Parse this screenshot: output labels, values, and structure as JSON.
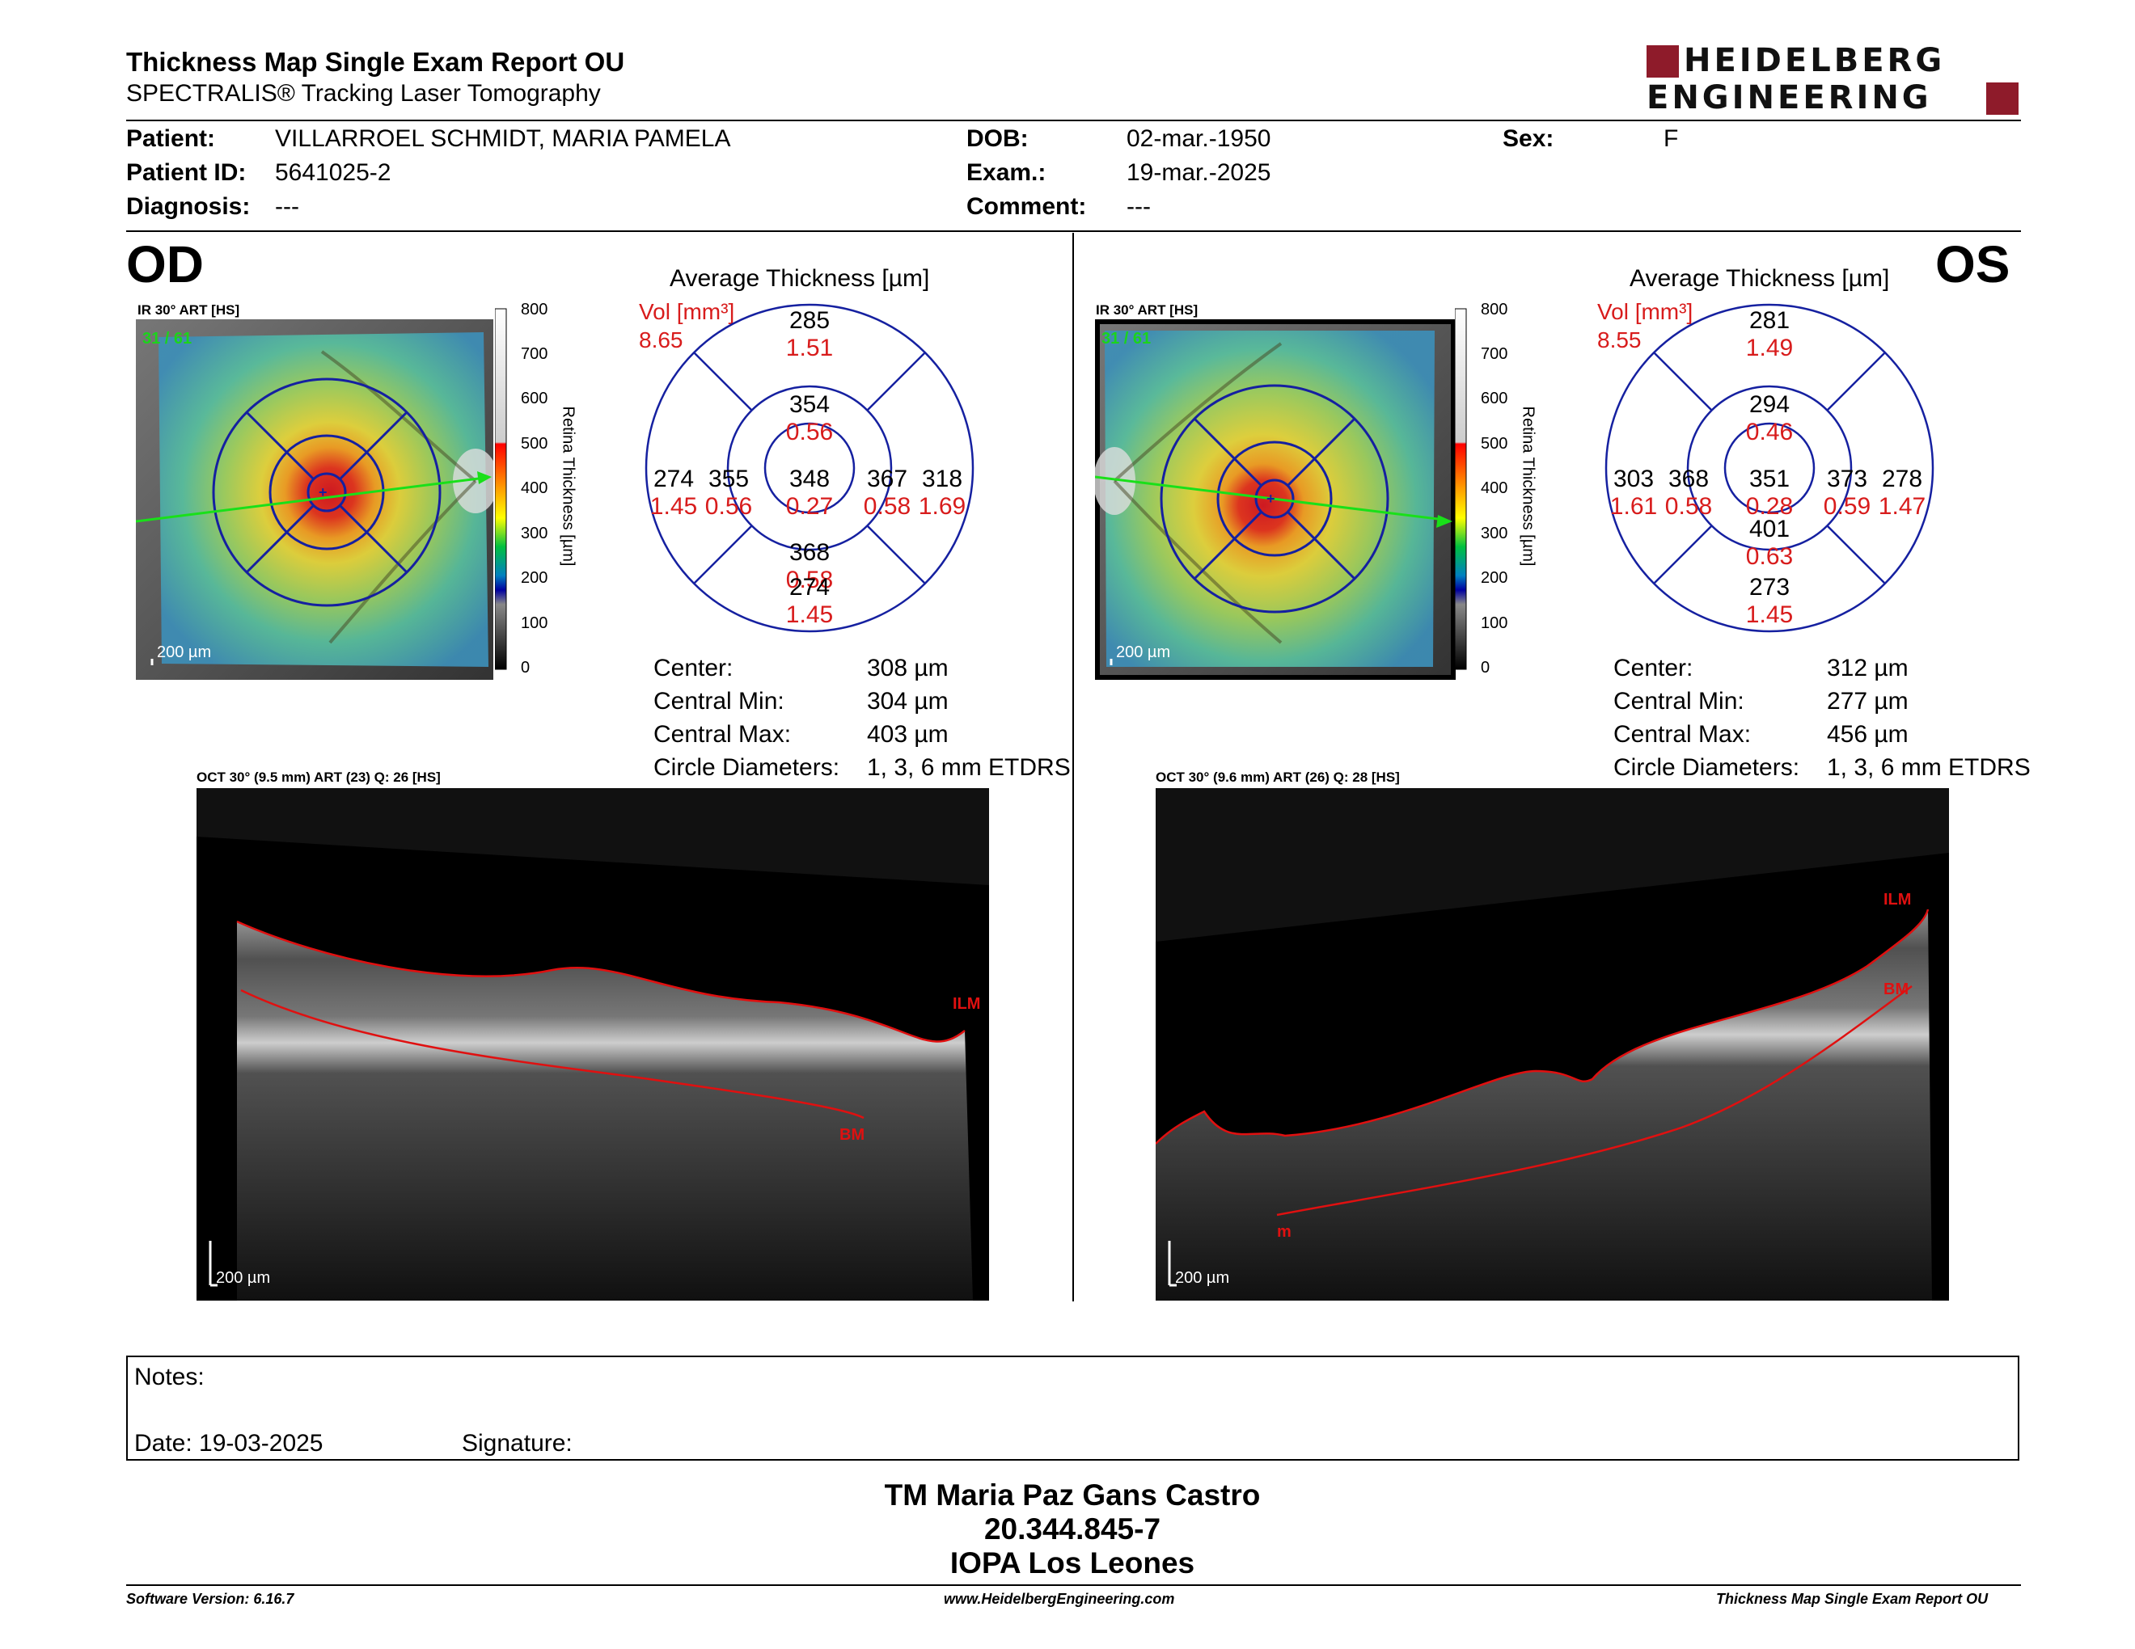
{
  "header": {
    "title": "Thickness Map Single Exam Report OU",
    "subtitle": "SPECTRALIS® Tracking Laser Tomography",
    "logo_line1": "HEIDELBERG",
    "logo_line2": "ENGINEERING"
  },
  "patient": {
    "patient_label": "Patient:",
    "patient_value": "VILLARROEL SCHMIDT, MARIA PAMELA",
    "id_label": "Patient ID:",
    "id_value": "5641025-2",
    "diagnosis_label": "Diagnosis:",
    "diagnosis_value": "---",
    "dob_label": "DOB:",
    "dob_value": "02-mar.-1950",
    "exam_label": "Exam.:",
    "exam_value": "19-mar.-2025",
    "comment_label": "Comment:",
    "comment_value": "---",
    "sex_label": "Sex:",
    "sex_value": "F"
  },
  "colorbar": {
    "ticks": [
      "800",
      "700",
      "600",
      "500",
      "400",
      "300",
      "200",
      "100",
      "0"
    ],
    "label": "Retina Thickness [µm]"
  },
  "od": {
    "eye": "OD",
    "ir_label": "IR 30° ART [HS]",
    "frames": "31 / 61",
    "scale": "200 µm",
    "avg_title": "Average Thickness [µm]",
    "vol_label": "Vol [mm³]",
    "vol_total": "8.65",
    "grid": {
      "center": {
        "t": "348",
        "v": "0.27"
      },
      "inner_sup": {
        "t": "354",
        "v": "0.56"
      },
      "inner_inf": {
        "t": "368",
        "v": "0.58"
      },
      "inner_left": {
        "t": "355",
        "v": "0.56"
      },
      "inner_right": {
        "t": "367",
        "v": "0.58"
      },
      "outer_sup": {
        "t": "285",
        "v": "1.51"
      },
      "outer_inf": {
        "t": "274",
        "v": "1.45"
      },
      "outer_left": {
        "t": "274",
        "v": "1.45"
      },
      "outer_right": {
        "t": "318",
        "v": "1.69"
      }
    },
    "stats": {
      "center_label": "Center:",
      "center_value": "308 µm",
      "min_label": "Central Min:",
      "min_value": "304 µm",
      "max_label": "Central Max:",
      "max_value": "403 µm",
      "diam_label": "Circle Diameters:",
      "diam_value": "1, 3, 6 mm ETDRS"
    },
    "oct_label": "OCT 30° (9.5 mm) ART (23) Q: 26 [HS]",
    "oct_scale": "200 µm",
    "ilm": "ILM",
    "bm": "BM"
  },
  "os": {
    "eye": "OS",
    "ir_label": "IR 30° ART [HS]",
    "frames": "31 / 61",
    "scale": "200 µm",
    "avg_title": "Average Thickness [µm]",
    "vol_label": "Vol [mm³]",
    "vol_total": "8.55",
    "grid": {
      "center": {
        "t": "351",
        "v": "0.28"
      },
      "inner_sup": {
        "t": "294",
        "v": "0.46"
      },
      "inner_inf": {
        "t": "401",
        "v": "0.63"
      },
      "inner_left": {
        "t": "368",
        "v": "0.58"
      },
      "inner_right": {
        "t": "373",
        "v": "0.59"
      },
      "outer_sup": {
        "t": "281",
        "v": "1.49"
      },
      "outer_inf": {
        "t": "273",
        "v": "1.45"
      },
      "outer_left": {
        "t": "303",
        "v": "1.61"
      },
      "outer_right": {
        "t": "278",
        "v": "1.47"
      }
    },
    "stats": {
      "center_label": "Center:",
      "center_value": "312 µm",
      "min_label": "Central Min:",
      "min_value": "277 µm",
      "max_label": "Central Max:",
      "max_value": "456 µm",
      "diam_label": "Circle Diameters:",
      "diam_value": "1, 3, 6 mm ETDRS"
    },
    "oct_label": "OCT 30° (9.6 mm) ART (26) Q: 28 [HS]",
    "oct_scale": "200 µm",
    "ilm": "ILM",
    "bm": "BM",
    "bm_partial": "m"
  },
  "notes": {
    "notes_label": "Notes:",
    "date_label": "Date: 19-03-2025",
    "signature_label": "Signature:"
  },
  "signatory": {
    "name": "TM Maria Paz Gans Castro",
    "rut": "20.344.845-7",
    "institution": "IOPA Los Leones"
  },
  "footer": {
    "software": "Software Version: 6.16.7",
    "website": "www.HeidelbergEngineering.com",
    "report_name": "Thickness Map Single Exam Report OU"
  }
}
